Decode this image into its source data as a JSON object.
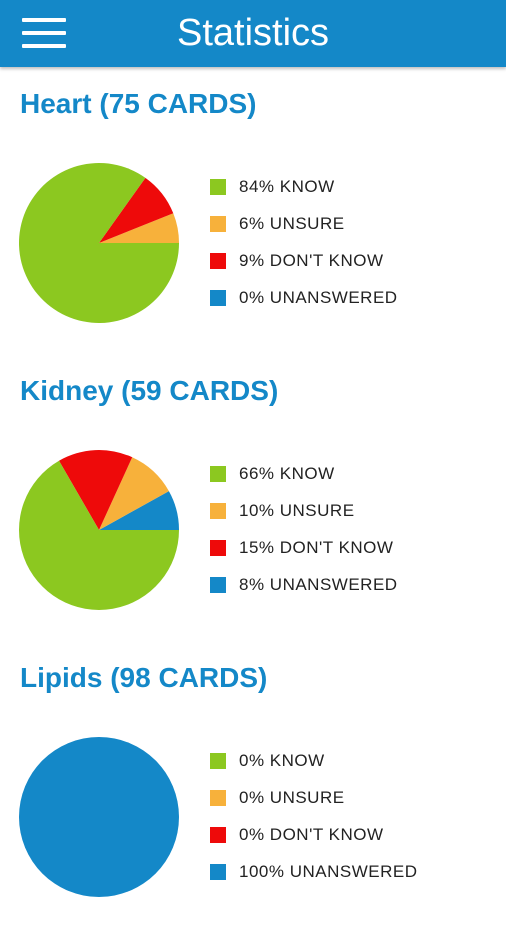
{
  "header": {
    "title": "Statistics",
    "menu_icon": "hamburger-menu-icon"
  },
  "colors": {
    "know": "#8cc820",
    "unsure": "#f7b13b",
    "dont_know": "#ee0a0a",
    "unanswered": "#1488c8",
    "accent": "#1488c8"
  },
  "sections": [
    {
      "title": "Heart (75 CARDS)",
      "legend": [
        "84% KNOW",
        "6% UNSURE",
        "9% DON'T KNOW",
        "0% UNANSWERED"
      ]
    },
    {
      "title": "Kidney (59 CARDS)",
      "legend": [
        "66% KNOW",
        "10% UNSURE",
        "15% DON'T KNOW",
        "8% UNANSWERED"
      ]
    },
    {
      "title": "Lipids (98 CARDS)",
      "legend": [
        "0% KNOW",
        "0% UNSURE",
        "0% DON'T KNOW",
        "100% UNANSWERED"
      ]
    }
  ],
  "chart_data": [
    {
      "type": "pie",
      "title": "Heart (75 CARDS)",
      "categories": [
        "KNOW",
        "UNSURE",
        "DON'T KNOW",
        "UNANSWERED"
      ],
      "values": [
        84,
        6,
        9,
        0
      ],
      "legend_position": "right"
    },
    {
      "type": "pie",
      "title": "Kidney (59 CARDS)",
      "categories": [
        "KNOW",
        "UNSURE",
        "DON'T KNOW",
        "UNANSWERED"
      ],
      "values": [
        66,
        10,
        15,
        8
      ],
      "legend_position": "right"
    },
    {
      "type": "pie",
      "title": "Lipids (98 CARDS)",
      "categories": [
        "KNOW",
        "UNSURE",
        "DON'T KNOW",
        "UNANSWERED"
      ],
      "values": [
        0,
        0,
        0,
        100
      ],
      "legend_position": "right"
    }
  ]
}
